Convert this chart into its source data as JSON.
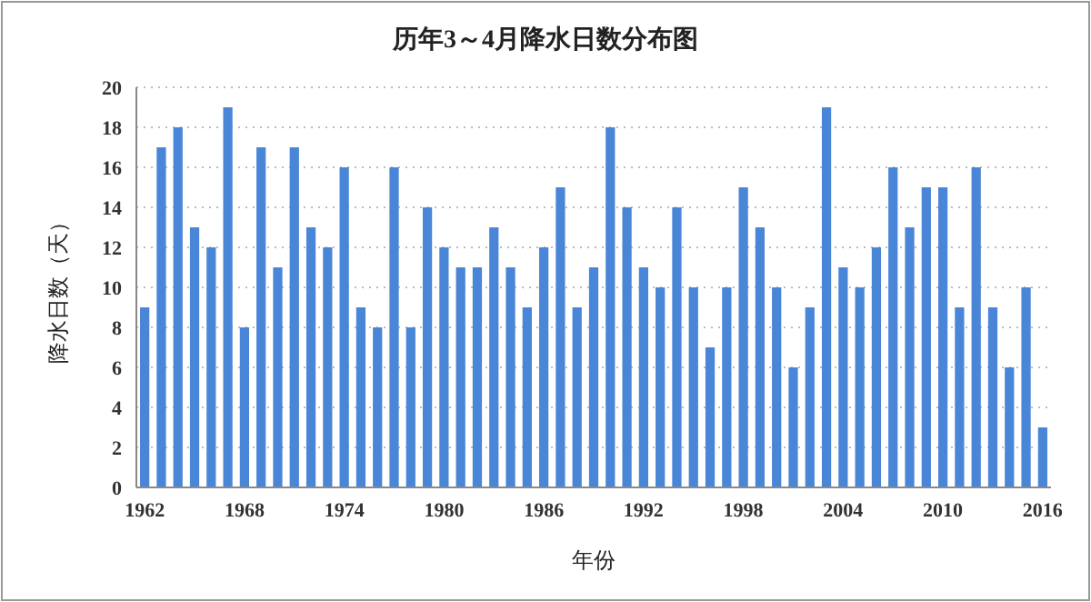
{
  "chart_data": {
    "type": "bar",
    "title": "历年3～4月降水日数分布图",
    "xlabel": "年份",
    "ylabel": "降水日数（天）",
    "categories": [
      "1962",
      null,
      null,
      null,
      null,
      null,
      "1968",
      null,
      null,
      null,
      null,
      null,
      "1974",
      null,
      null,
      null,
      null,
      null,
      "1980",
      null,
      null,
      null,
      null,
      null,
      "1986",
      null,
      null,
      null,
      null,
      null,
      "1992",
      null,
      null,
      null,
      null,
      null,
      "1998",
      null,
      null,
      null,
      null,
      null,
      "2004",
      null,
      null,
      null,
      null,
      null,
      "2010",
      null,
      null,
      null,
      null,
      null,
      "2016"
    ],
    "values": [
      9,
      17,
      18,
      13,
      12,
      19,
      8,
      17,
      11,
      17,
      13,
      12,
      16,
      9,
      8,
      16,
      8,
      14,
      12,
      11,
      11,
      13,
      11,
      9,
      12,
      15,
      9,
      11,
      18,
      14,
      11,
      10,
      14,
      10,
      7,
      10,
      15,
      13,
      10,
      6,
      9,
      19,
      11,
      10,
      12,
      16,
      13,
      15,
      15,
      9,
      16,
      9,
      6,
      10,
      3
    ],
    "color": "#4a86d8",
    "ylim": [
      0,
      20
    ],
    "yticks": [
      0,
      2,
      4,
      6,
      8,
      10,
      12,
      14,
      16,
      18,
      20
    ],
    "grid": "y"
  }
}
